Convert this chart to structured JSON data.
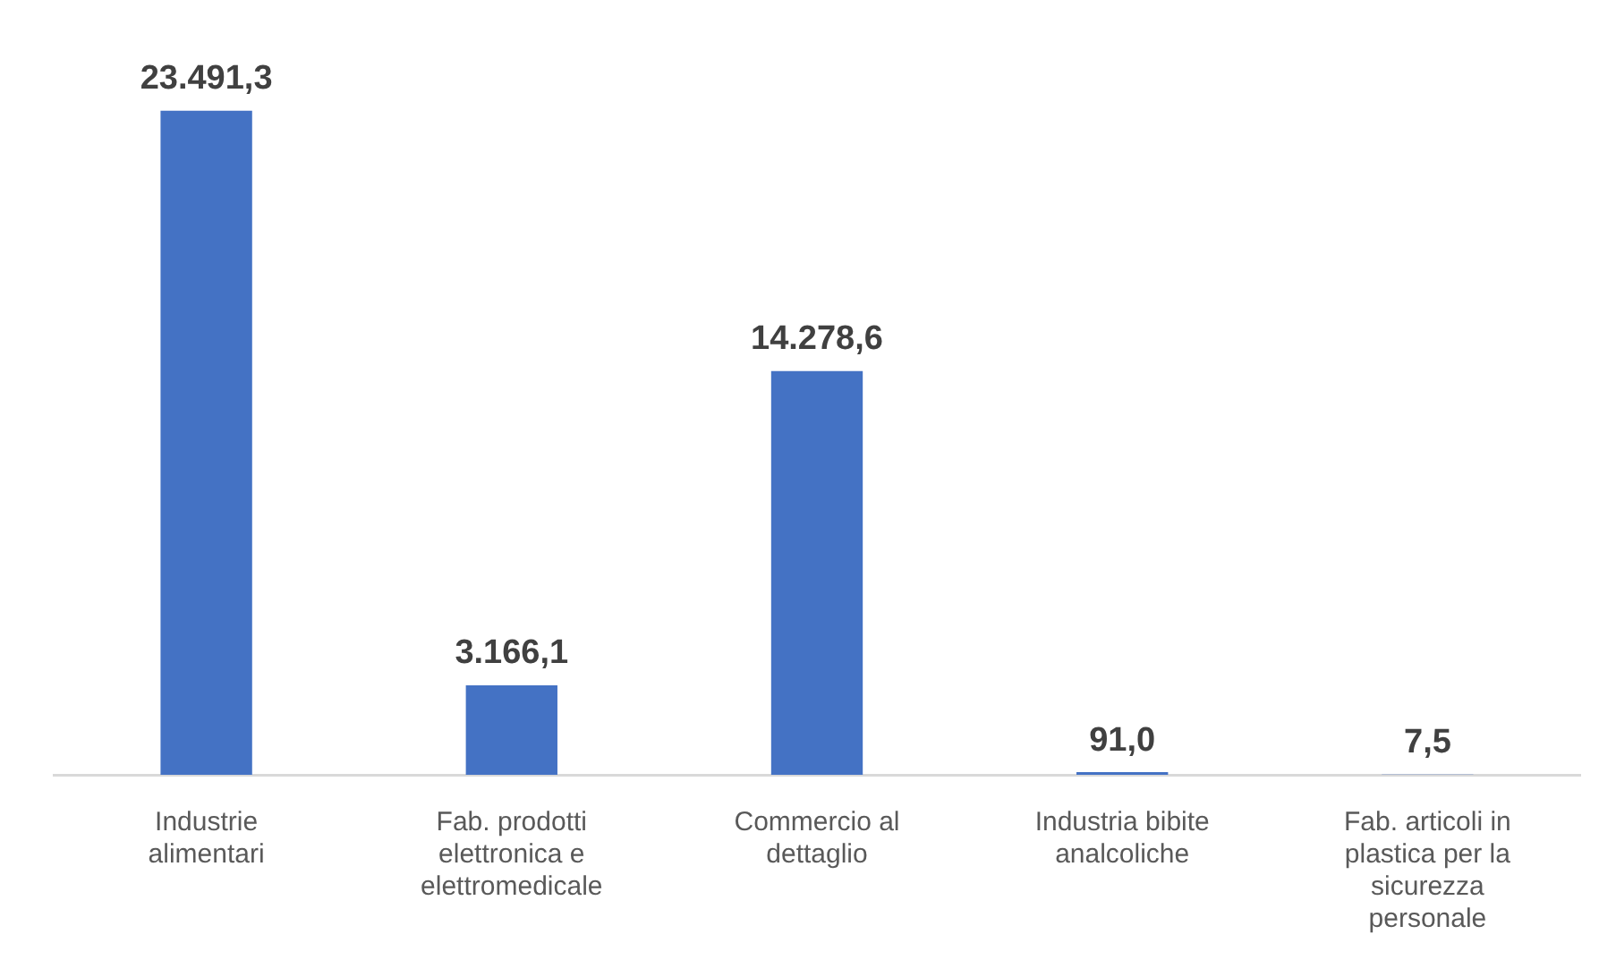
{
  "chart_data": {
    "type": "bar",
    "categories": [
      "Industrie alimentari",
      "Fab. prodotti elettronica e elettromedicale",
      "Commercio al dettaglio",
      "Industria bibite analcoliche",
      "Fab. articoli in plastica per la sicurezza personale"
    ],
    "values": [
      23491.3,
      3166.1,
      14278.6,
      91.0,
      7.5
    ],
    "value_labels": [
      "23.491,3",
      "3.166,1",
      "14.278,6",
      "91,0",
      "7,5"
    ],
    "color": "#4472c4",
    "grid": false,
    "legend": false
  }
}
